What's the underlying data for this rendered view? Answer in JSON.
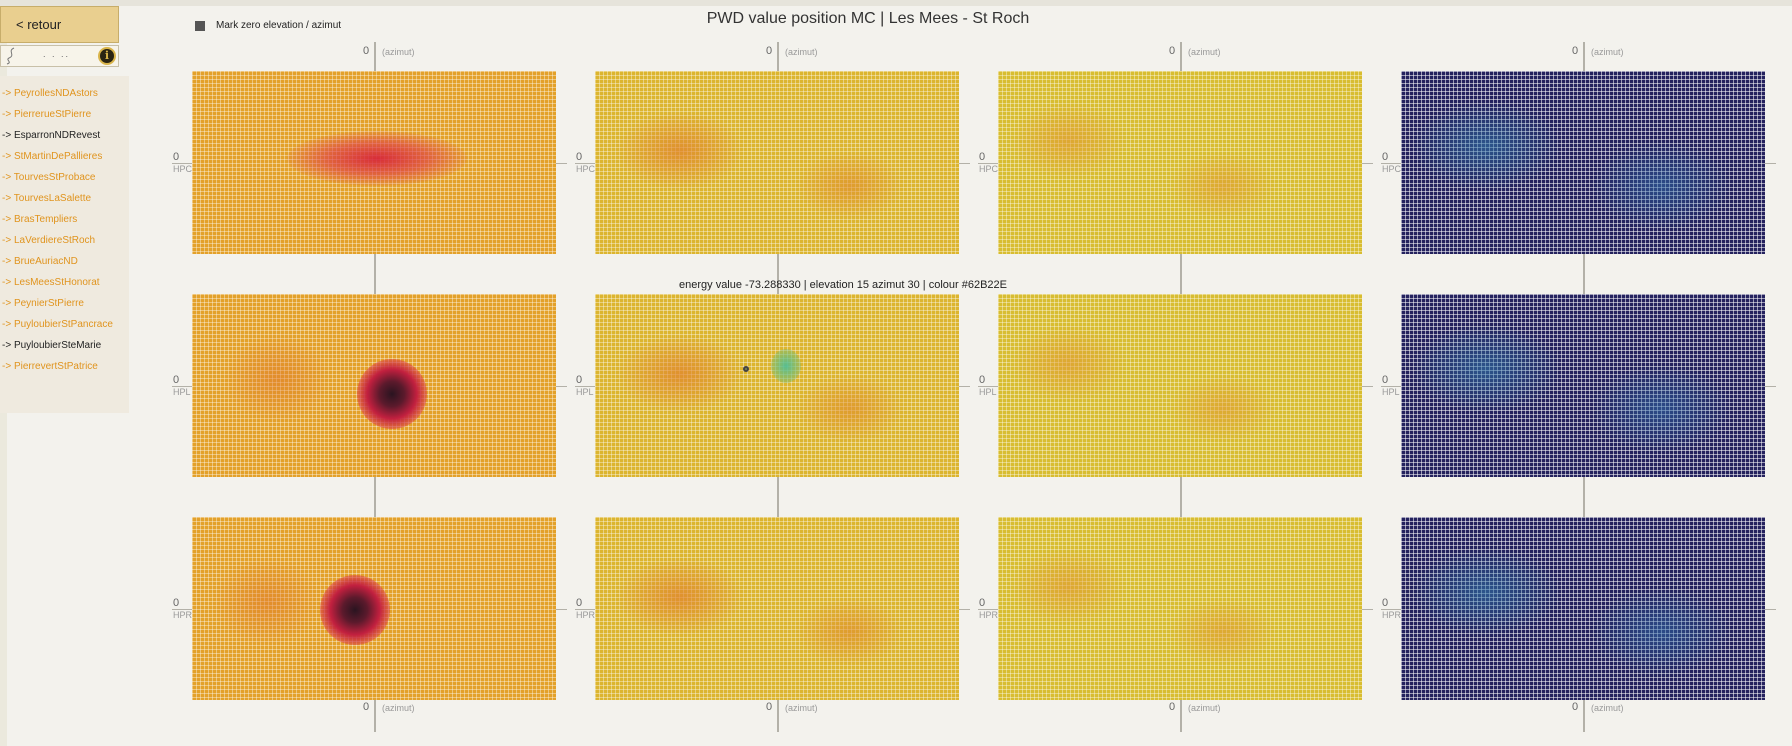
{
  "nav": {
    "back_label": "< retour",
    "logo_dots": ". . ..",
    "info_glyph": "i",
    "items": [
      {
        "label": "-> PeyrollesNDAstors",
        "active": false
      },
      {
        "label": "-> PierrerueStPierre",
        "active": false
      },
      {
        "label": "-> EsparronNDRevest",
        "active": true
      },
      {
        "label": "-> StMartinDePallieres",
        "active": false
      },
      {
        "label": "-> TourvesStProbace",
        "active": false
      },
      {
        "label": "-> TourvesLaSalette",
        "active": false
      },
      {
        "label": "-> BrasTempliers",
        "active": false
      },
      {
        "label": "-> LaVerdiereStRoch",
        "active": false
      },
      {
        "label": "-> BrueAuriacND",
        "active": false
      },
      {
        "label": "-> LesMeesStHonorat",
        "active": false
      },
      {
        "label": "-> PeynierStPierre",
        "active": false
      },
      {
        "label": "-> PuyloubierStPancrace",
        "active": false
      },
      {
        "label": "-> PuyloubierSteMarie",
        "active": true
      },
      {
        "label": "-> PierrevertStPatrice",
        "active": false
      }
    ]
  },
  "legend": {
    "label": "Mark zero elevation / azimut"
  },
  "title": "PWD value position MC | Les Mees - St Roch",
  "hover_info": "energy value -73.288330 | elevation 15 azimut 30 | colour #62B22E",
  "axis": {
    "zero": "0",
    "azimut": "(azimut)",
    "rows": [
      "HPC",
      "HPL",
      "HPR"
    ]
  },
  "colors": {
    "nav_link": "#e0941e",
    "nav_active": "#222222",
    "heat_orange": "#e3a12a",
    "heat_yellow": "#d8bd31",
    "heat_red": "#d8243a",
    "heat_dark_blue": "#24225e"
  }
}
